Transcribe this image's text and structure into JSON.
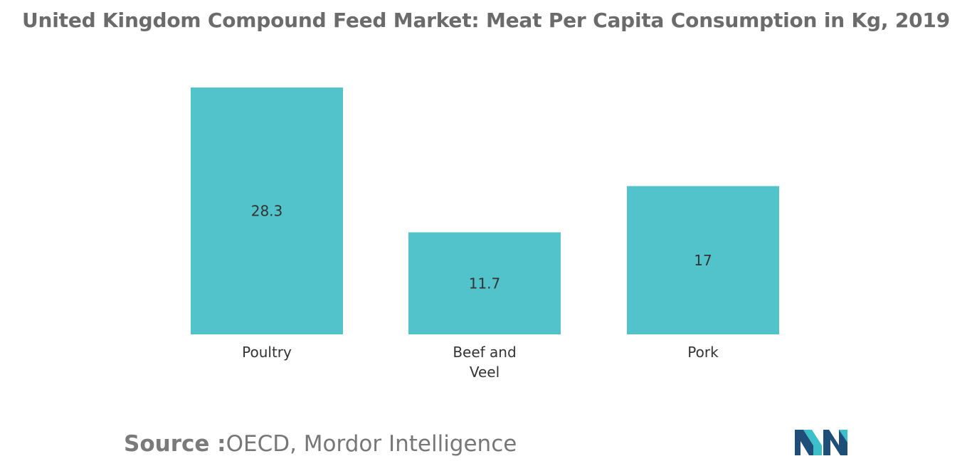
{
  "title": "United Kingdom Compound Feed Market: Meat Per Capita Consumption in Kg, 2019",
  "source": {
    "label": "Source :",
    "text": "OECD, Mordor Intelligence"
  },
  "colors": {
    "bar": "#52c3ca",
    "text": "#333333",
    "title": "#6b6b6b",
    "logo_dark": "#1f4e79",
    "logo_light": "#3dbfc9"
  },
  "logo": {
    "icon": "mordor-intelligence-logo"
  },
  "chart_data": {
    "type": "bar",
    "title": "United Kingdom Compound Feed Market: Meat Per Capita Consumption in Kg, 2019",
    "categories": [
      "Poultry",
      "Beef and Veel",
      "Pork"
    ],
    "category_lines": [
      [
        "Poultry"
      ],
      [
        "Beef and",
        "Veel"
      ],
      [
        "Pork"
      ]
    ],
    "values": [
      28.3,
      11.7,
      17
    ],
    "value_labels": [
      "28.3",
      "11.7",
      "17"
    ],
    "xlabel": "",
    "ylabel": "",
    "ylim": [
      0,
      28.3
    ],
    "grid": false,
    "legend": "none",
    "data_labels": "inside-center"
  }
}
